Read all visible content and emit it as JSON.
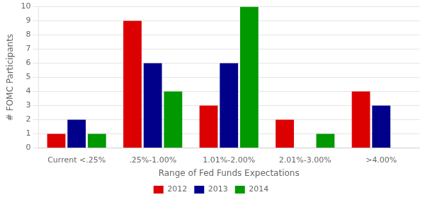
{
  "chart_data": {
    "type": "bar",
    "categories": [
      "Current <.25%",
      ".25%-1.00%",
      "1.01%-2.00%",
      "2.01%-3.00%",
      ">4.00%"
    ],
    "series": [
      {
        "name": "2012",
        "color": "#DD0000",
        "values": [
          1,
          9,
          3,
          2,
          4
        ]
      },
      {
        "name": "2013",
        "color": "#00008B",
        "values": [
          2,
          6,
          6,
          0,
          3
        ]
      },
      {
        "name": "2014",
        "color": "#009900",
        "values": [
          1,
          4,
          10,
          1,
          0
        ]
      }
    ],
    "xlabel": "Range of Fed Funds Expectations",
    "ylabel": "# FOMC Participants",
    "ylim": [
      0,
      10
    ],
    "yticks": [
      0,
      1,
      2,
      3,
      4,
      5,
      6,
      7,
      8,
      9,
      10
    ],
    "grid": true,
    "legend": "bottom"
  }
}
